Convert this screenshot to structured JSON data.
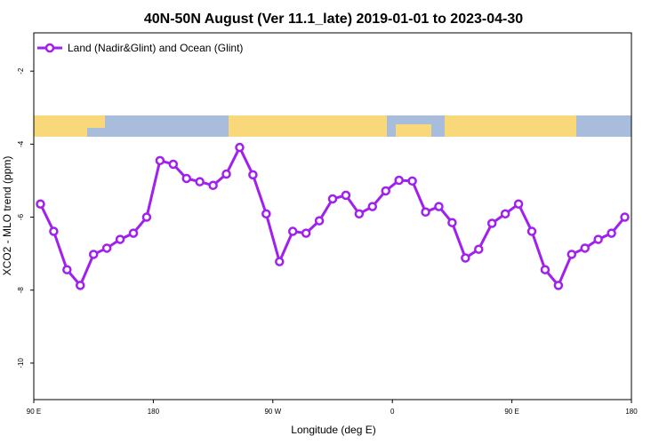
{
  "chart_data": {
    "type": "line",
    "title": "40N-50N August (Ver 11.1_late)   2019-01-01 to 2023-04-30",
    "x_label": "Longitude (deg E)",
    "y_label": "XCO2 - MLO trend (ppm)",
    "x": [
      95,
      105,
      115,
      125,
      135,
      145,
      155,
      165,
      175,
      185,
      195,
      205,
      215,
      225,
      235,
      245,
      255,
      265,
      275,
      285,
      295,
      305,
      315,
      325,
      335,
      345,
      355,
      365,
      375,
      385,
      395,
      405,
      415,
      425,
      435,
      445,
      455,
      465,
      475,
      485,
      495,
      505,
      515,
      525,
      535
    ],
    "series": [
      {
        "name": "Land (Nadir&Glint) and Ocean (Glint)",
        "color": "#a020f0",
        "values": [
          -5.64,
          -6.39,
          -7.44,
          -7.87,
          -7.02,
          -6.85,
          -6.61,
          -6.44,
          -6.0,
          -4.45,
          -4.55,
          -4.94,
          -5.03,
          -5.13,
          -4.82,
          -4.09,
          -4.84,
          -5.91,
          -7.22,
          -6.39,
          -6.44,
          -6.1,
          -5.5,
          -5.4,
          -5.91,
          -5.71,
          -5.28,
          -4.99,
          -5.01,
          -5.86,
          -5.71,
          -6.15,
          -7.12,
          -6.88,
          -6.17,
          -5.91,
          -5.64,
          -6.39,
          -7.44,
          -7.87,
          -7.02,
          -6.85,
          -6.61,
          -6.44,
          -6.0
        ]
      }
    ],
    "xlim": [
      90,
      540
    ],
    "xticks": [
      {
        "value": 90,
        "label": "90 E"
      },
      180,
      {
        "value": 270,
        "label": "90 W"
      },
      {
        "value": 360,
        "label": "0"
      },
      {
        "value": 450,
        "label": "90 E"
      },
      {
        "value": 540,
        "label": "180"
      }
    ],
    "ylim": [
      -11,
      -0.95
    ],
    "yticks": [
      -10,
      -8,
      -6,
      -4,
      -2
    ],
    "legend": "top-left"
  }
}
